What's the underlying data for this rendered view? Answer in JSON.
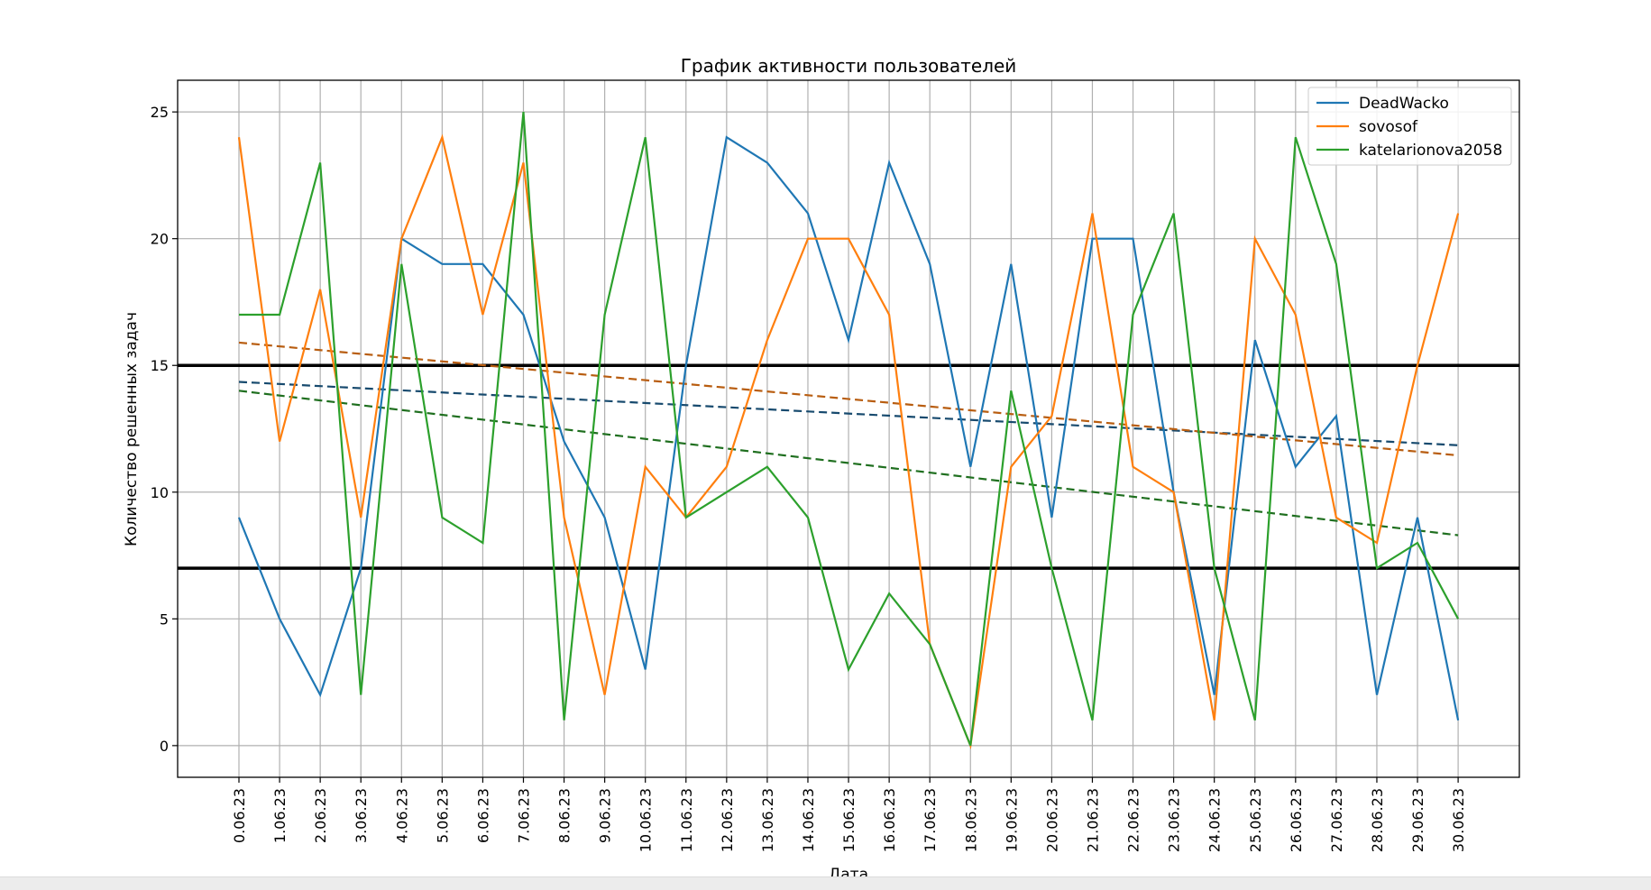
{
  "chart_data": {
    "type": "line",
    "title": "График активности пользователей",
    "xlabel": "Дата",
    "ylabel": "Количество решенных задач",
    "categories": [
      "0.06.23",
      "1.06.23",
      "2.06.23",
      "3.06.23",
      "4.06.23",
      "5.06.23",
      "6.06.23",
      "7.06.23",
      "8.06.23",
      "9.06.23",
      "10.06.23",
      "11.06.23",
      "12.06.23",
      "13.06.23",
      "14.06.23",
      "15.06.23",
      "16.06.23",
      "17.06.23",
      "18.06.23",
      "19.06.23",
      "20.06.23",
      "21.06.23",
      "22.06.23",
      "23.06.23",
      "24.06.23",
      "25.06.23",
      "26.06.23",
      "27.06.23",
      "28.06.23",
      "29.06.23",
      "30.06.23"
    ],
    "ylim": [
      -1.25,
      26.25
    ],
    "yticks": [
      0,
      5,
      10,
      15,
      20,
      25
    ],
    "grid": true,
    "legend_position": "top-right",
    "series": [
      {
        "name": "DeadWacko",
        "color": "#1f77b4",
        "trend_color": "#174a6e",
        "values": [
          9,
          5,
          2,
          7,
          20,
          19,
          19,
          17,
          12,
          9,
          3,
          15,
          24,
          23,
          21,
          16,
          23,
          19,
          11,
          19,
          9,
          20,
          20,
          10,
          2,
          16,
          11,
          13,
          2,
          9,
          1
        ],
        "trend": [
          14.35,
          11.85
        ]
      },
      {
        "name": "sovosof",
        "color": "#ff7f0e",
        "trend_color": "#b85d10",
        "values": [
          24,
          12,
          18,
          9,
          20,
          24,
          17,
          23,
          9,
          2,
          11,
          9,
          11,
          16,
          20,
          20,
          17,
          4,
          0,
          11,
          13,
          21,
          11,
          10,
          1,
          20,
          17,
          9,
          8,
          15,
          21
        ],
        "trend": [
          15.9,
          11.45
        ]
      },
      {
        "name": "katelarionova2058",
        "color": "#2ca02c",
        "trend_color": "#1f6f1f",
        "values": [
          17,
          17,
          23,
          2,
          19,
          9,
          8,
          25,
          1,
          17,
          24,
          9,
          10,
          11,
          9,
          3,
          6,
          4,
          0,
          14,
          7,
          1,
          17,
          21,
          7,
          1,
          24,
          19,
          7,
          8,
          5
        ],
        "trend": [
          14.0,
          8.3
        ]
      }
    ],
    "hlines": [
      15,
      7
    ]
  }
}
